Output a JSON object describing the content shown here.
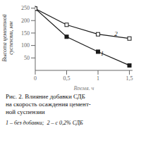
{
  "chart_data": {
    "type": "line",
    "x": [
      0,
      0.5,
      1.0,
      1.5
    ],
    "series": [
      {
        "name": "1",
        "color": "#1a1a1a",
        "marker": "filled_square",
        "values": [
          248,
          135,
          75,
          20
        ]
      },
      {
        "name": "2",
        "color": "#1a1a1a",
        "marker": "open_square",
        "values": [
          248,
          183,
          145,
          128
        ]
      }
    ],
    "xlabel": "Время, ч",
    "ylabel": [
      "Высота цементной",
      "суспензии, мм"
    ],
    "xlim": [
      0,
      1.55
    ],
    "ylim": [
      0,
      260
    ],
    "xticks": [
      0,
      {
        "value": 0.5,
        "label": "0,5"
      },
      1,
      {
        "value": 1.5,
        "label": "1,5"
      }
    ],
    "yticks": [
      50,
      100,
      150,
      200,
      250
    ],
    "annotations": [
      {
        "text": "1",
        "x": 1.03,
        "y": 68
      },
      {
        "text": "2",
        "x": 1.25,
        "y": 148
      }
    ],
    "caption": [
      "Рис. 2. Влияние добавки СДБ",
      "на скорость осаждения цемент-",
      "ной суспензии"
    ],
    "note": "1 – без добавки;  2 – с 0,2% СДБ"
  }
}
